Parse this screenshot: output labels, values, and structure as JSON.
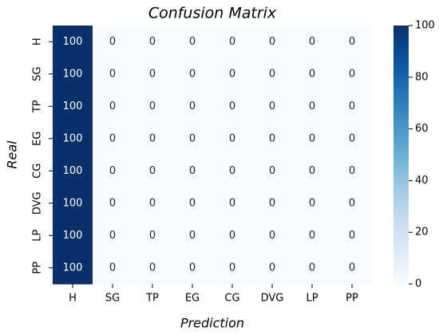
{
  "chart_data": {
    "type": "heatmap",
    "title": "Confusion Matrix",
    "x_label": "Prediction",
    "y_label": "Real",
    "x_categories": [
      "H",
      "SG",
      "TP",
      "EG",
      "CG",
      "DVG",
      "LP",
      "PP"
    ],
    "y_categories": [
      "H",
      "SG",
      "TP",
      "EG",
      "CG",
      "DVG",
      "LP",
      "PP"
    ],
    "values": [
      [
        100,
        0,
        0,
        0,
        0,
        0,
        0,
        0
      ],
      [
        100,
        0,
        0,
        0,
        0,
        0,
        0,
        0
      ],
      [
        100,
        0,
        0,
        0,
        0,
        0,
        0,
        0
      ],
      [
        100,
        0,
        0,
        0,
        0,
        0,
        0,
        0
      ],
      [
        100,
        0,
        0,
        0,
        0,
        0,
        0,
        0
      ],
      [
        100,
        0,
        0,
        0,
        0,
        0,
        0,
        0
      ],
      [
        100,
        0,
        0,
        0,
        0,
        0,
        0,
        0
      ],
      [
        100,
        0,
        0,
        0,
        0,
        0,
        0,
        0
      ]
    ],
    "colormap": "Blues",
    "clim": [
      0,
      100
    ],
    "cticks": [
      0,
      20,
      40,
      60,
      80,
      100
    ]
  }
}
